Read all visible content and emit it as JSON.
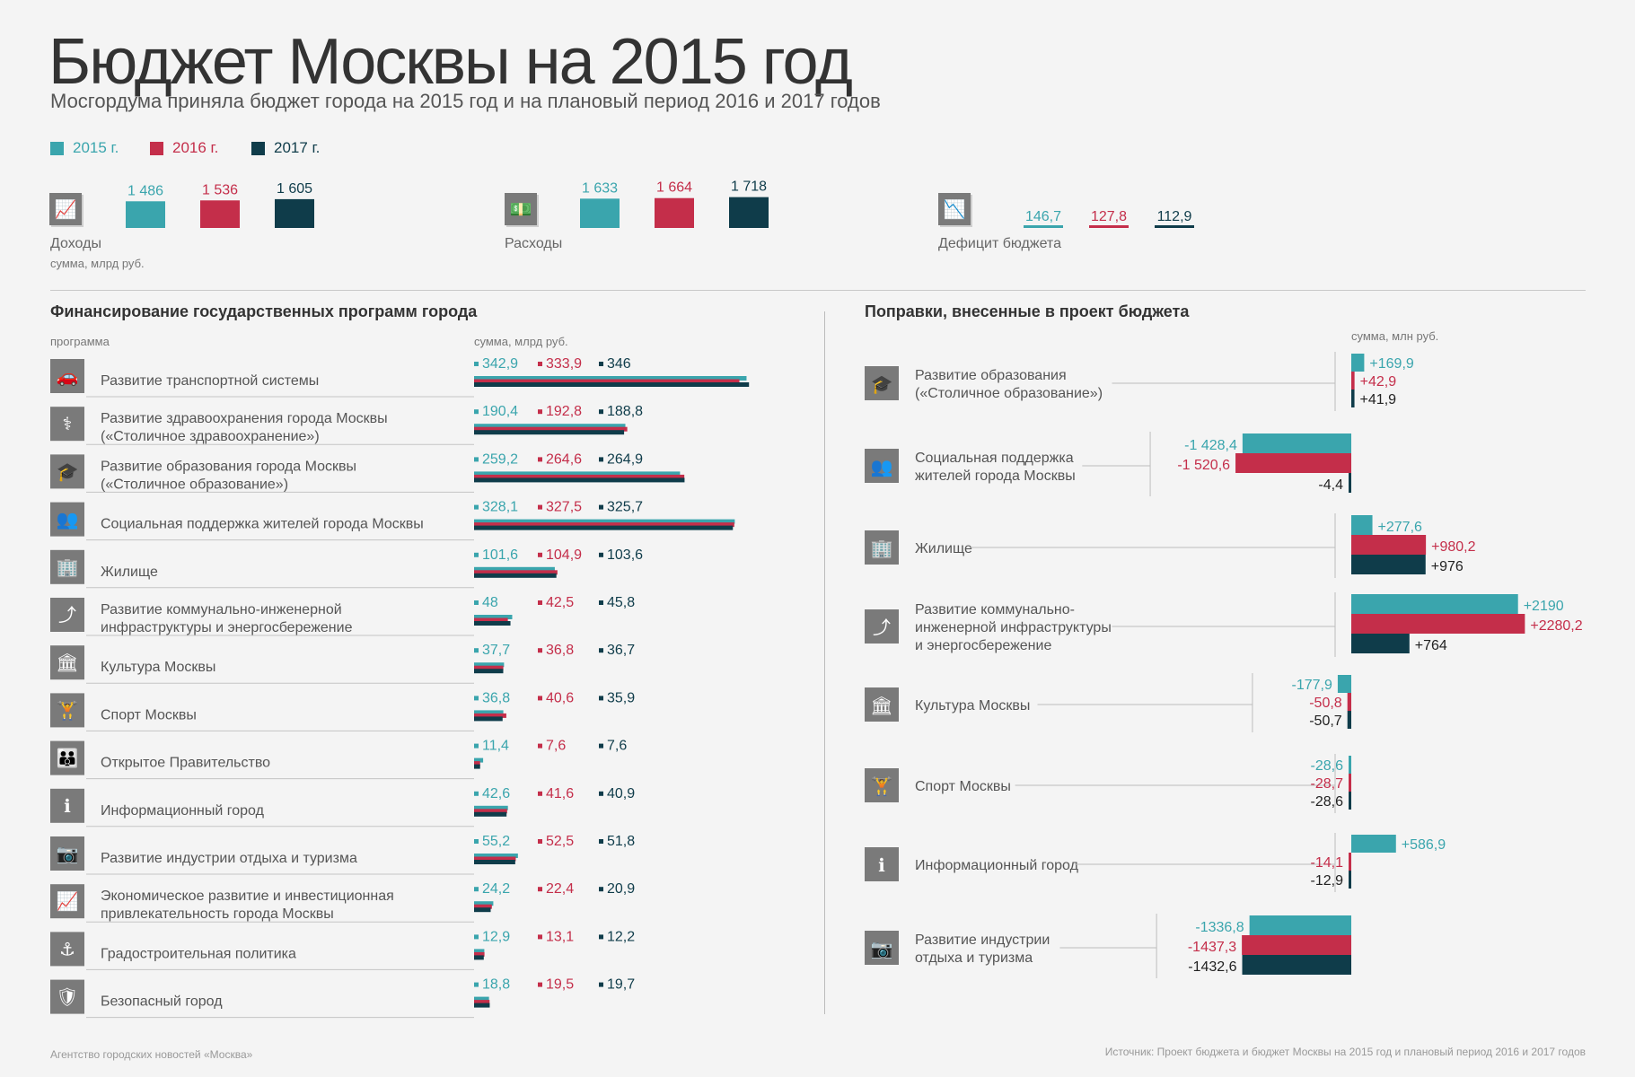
{
  "title": "Бюджет Москвы на 2015 год",
  "subtitle": "Мосгордума приняла бюджет города на 2015 год и на плановый период 2016 и 2017 годов",
  "colors": {
    "y2015": "#3aa5ad",
    "y2016": "#c42e4a",
    "y2017": "#0f3c4a",
    "icon": "#7a7a7a"
  },
  "legend": [
    "2015 г.",
    "2016 г.",
    "2017 г."
  ],
  "summary": {
    "income": {
      "label": "Доходы",
      "sublabel": "сумма, млрд руб.",
      "values": [
        "1 486",
        "1 536",
        "1 605"
      ],
      "icon": "chart-line-icon"
    },
    "expenses": {
      "label": "Расходы",
      "values": [
        "1 633",
        "1 664",
        "1 718"
      ],
      "icon": "money-stack-icon"
    },
    "deficit": {
      "label": "Дефицит бюджета",
      "values": [
        "146,7",
        "127,8",
        "112,9"
      ],
      "icon": "chart-down-icon"
    }
  },
  "left": {
    "title": "Финансирование государственных программ города",
    "col_program": "программа",
    "col_sum": "сумма, млрд руб."
  },
  "right": {
    "title": "Поправки, внесенные в проект бюджета",
    "col_sum": "сумма, млн руб."
  },
  "chart_data": [
    {
      "type": "bar",
      "title": "Финансирование государственных программ города",
      "ylabel": "сумма, млрд руб.",
      "categories": [
        "Развитие транспортной системы",
        "Развитие здравоохранения города Москвы\n(«Столичное здравоохранение»)",
        "Развитие образования города Москвы\n(«Столичное образование»)",
        "Социальная поддержка жителей города Москвы",
        "Жилище",
        "Развитие коммунально-инженерной\nинфраструктуры и энергосбережение",
        "Культура Москвы",
        "Спорт Москвы",
        "Открытое Правительство",
        "Информационный город",
        "Развитие индустрии отдыха и туризма",
        "Экономическое развитие и инвестиционная\nпривлекательность города Москвы",
        "Градостроительная политика",
        "Безопасный город"
      ],
      "icons": [
        "car-icon",
        "caduceus-icon",
        "graduation-cap-icon",
        "people-icon",
        "building-icon",
        "pipe-icon",
        "museum-icon",
        "dumbbell-icon",
        "crowd-icon",
        "info-icon",
        "camera-icon",
        "chart-line-icon",
        "crane-hook-icon",
        "shield-document-icon"
      ],
      "series": [
        {
          "name": "2015 г.",
          "values": [
            342.9,
            190.4,
            259.2,
            328.1,
            101.6,
            48,
            37.7,
            36.8,
            11.4,
            42.6,
            55.2,
            24.2,
            12.9,
            18.8
          ],
          "labels": [
            "342,9",
            "190,4",
            "259,2",
            "328,1",
            "101,6",
            "48",
            "37,7",
            "36,8",
            "11,4",
            "42,6",
            "55,2",
            "24,2",
            "12,9",
            "18,8"
          ]
        },
        {
          "name": "2016 г.",
          "values": [
            333.9,
            192.8,
            264.6,
            327.5,
            104.9,
            42.5,
            36.8,
            40.6,
            7.6,
            41.6,
            52.5,
            22.4,
            13.1,
            19.5
          ],
          "labels": [
            "333,9",
            "192,8",
            "264,6",
            "327,5",
            "104,9",
            "42,5",
            "36,8",
            "40,6",
            "7,6",
            "41,6",
            "52,5",
            "22,4",
            "13,1",
            "19,5"
          ]
        },
        {
          "name": "2017 г.",
          "values": [
            346,
            188.8,
            264.9,
            325.7,
            103.6,
            45.8,
            36.7,
            35.9,
            7.6,
            40.9,
            51.8,
            20.9,
            12.2,
            19.7
          ],
          "labels": [
            "346",
            "188,8",
            "264,9",
            "325,7",
            "103,6",
            "45,8",
            "36,7",
            "35,9",
            "7,6",
            "40,9",
            "51,8",
            "20,9",
            "12,2",
            "19,7"
          ]
        }
      ]
    },
    {
      "type": "bar",
      "title": "Поправки, внесенные в проект бюджета",
      "ylabel": "сумма, млн руб.",
      "categories": [
        "Развитие образования\n(«Столичное образование»)",
        "Социальная поддержка\nжителей города Москвы",
        "Жилище",
        "Развитие коммунально-\nинженерной инфраструктуры\nи энергосбережение",
        "Культура Москвы",
        "Спорт Москвы",
        "Информационный город",
        "Развитие индустрии\nотдыха и туризма"
      ],
      "icons": [
        "graduation-cap-icon",
        "people-icon",
        "building-icon",
        "pipe-icon",
        "museum-icon",
        "dumbbell-icon",
        "info-icon",
        "camera-icon"
      ],
      "series": [
        {
          "name": "2015 г.",
          "values": [
            169.9,
            -1428.4,
            277.6,
            2190,
            -177.9,
            -28.6,
            586.9,
            -1336.8
          ],
          "labels": [
            "+169,9",
            "-1 428,4",
            "+277,6",
            "+2190",
            "-177,9",
            "-28,6",
            "+586,9",
            "-1336,8"
          ]
        },
        {
          "name": "2016 г.",
          "values": [
            42.9,
            -1520.6,
            980.2,
            2280.2,
            -50.8,
            -28.7,
            -14.1,
            -1437.3
          ],
          "labels": [
            "+42,9",
            "-1 520,6",
            "+980,2",
            "+2280,2",
            "-50,8",
            "-28,7",
            "-14,1",
            "-1437,3"
          ]
        },
        {
          "name": "2017 г.",
          "values": [
            41.9,
            -4.4,
            976,
            764,
            -50.7,
            -28.6,
            -12.9,
            -1432.6
          ],
          "labels": [
            "+41,9",
            "-4,4",
            "+976",
            "+764",
            "-50,7",
            "-28,6",
            "-12,9",
            "-1432,6"
          ]
        }
      ]
    }
  ],
  "footer": {
    "agency": "Агентство городских новостей «Москва»",
    "source": "Источник: Проект бюджета и бюджет Москвы на 2015 год и плановый период 2016 и 2017 годов"
  }
}
